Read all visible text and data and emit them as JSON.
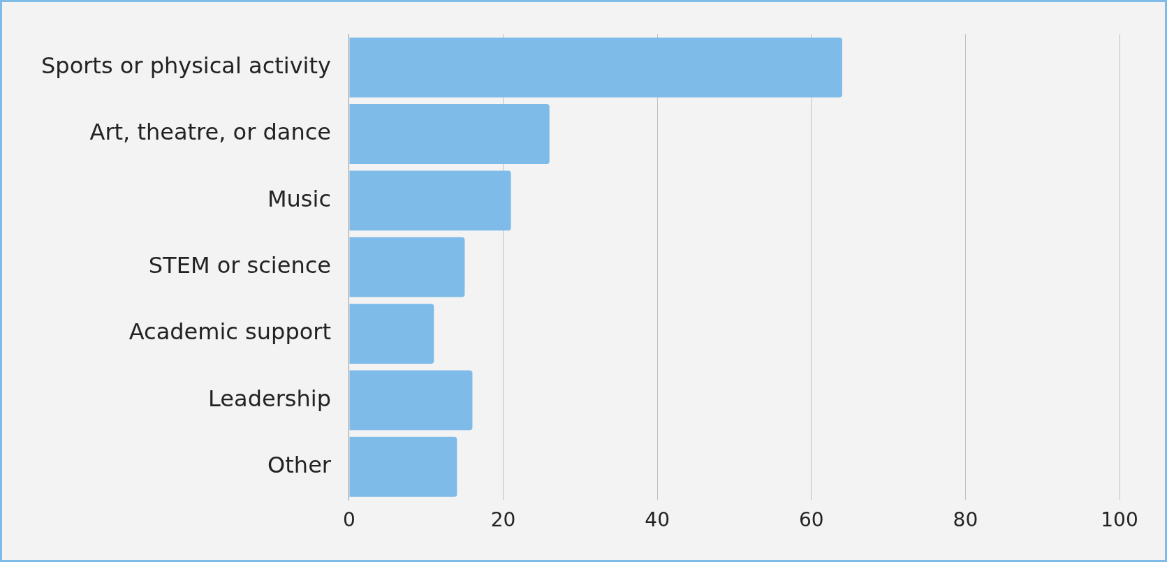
{
  "chart_data": {
    "type": "bar",
    "orientation": "horizontal",
    "categories": [
      "Sports or physical activity",
      "Art, theatre, or dance",
      "Music",
      "STEM or science",
      "Academic support",
      "Leadership",
      "Other"
    ],
    "values": [
      64,
      26,
      21,
      15,
      11,
      16,
      14
    ],
    "color": "#7fbbe8",
    "xlim": [
      0,
      100
    ],
    "xticks": [
      0,
      20,
      40,
      60,
      80,
      100
    ],
    "grid": "x",
    "legend": false
  }
}
